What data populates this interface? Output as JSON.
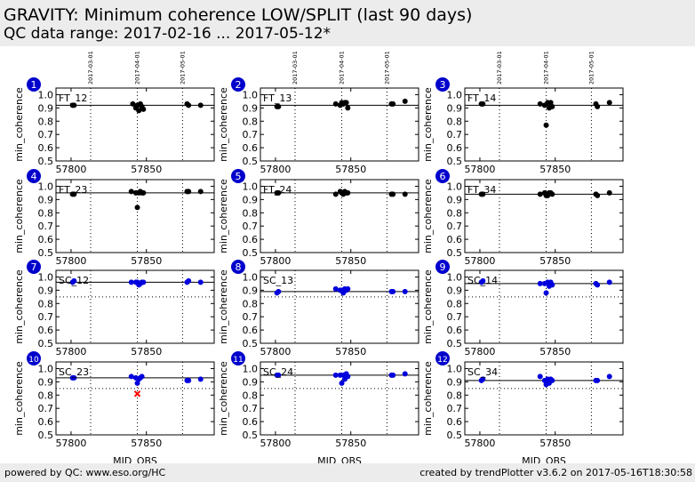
{
  "header": {
    "title": "GRAVITY: Minimum coherence LOW/SPLIT (last 90 days)",
    "subtitle": "QC data range: 2017-02-16 ... 2017-05-12*"
  },
  "footer": {
    "left": "powered by QC: www.eso.org/HC",
    "right": "created by trendPlotter v3.6.2 on 2017-05-16T18:30:58"
  },
  "colors": {
    "ft": "#000000",
    "sc": "#0000dd",
    "outlier": "#ff0000",
    "badge": "#0000cc"
  },
  "chart_data": [
    {
      "type": "scatter",
      "num": "1",
      "label": "FT_12",
      "series_color": "black",
      "xlim": [
        57790,
        57895
      ],
      "ylim": [
        0.5,
        1.05
      ],
      "xlabel": "",
      "ylabel": "min_coherence",
      "xticks": [
        57800,
        57850
      ],
      "yticks": [
        0.5,
        0.6,
        0.7,
        0.8,
        0.9,
        1.0
      ],
      "date_markers": [
        {
          "mjd": 57813,
          "label": "2017-03-01"
        },
        {
          "mjd": 57844,
          "label": "2017-04-01"
        },
        {
          "mjd": 57874,
          "label": "2017-05-01"
        }
      ],
      "ref_line": 0.92,
      "threshold": null,
      "points": [
        [
          57801,
          0.92
        ],
        [
          57802,
          0.92
        ],
        [
          57841,
          0.93
        ],
        [
          57843,
          0.9
        ],
        [
          57844,
          0.92
        ],
        [
          57845,
          0.88
        ],
        [
          57846,
          0.93
        ],
        [
          57847,
          0.91
        ],
        [
          57848,
          0.89
        ],
        [
          57877,
          0.93
        ],
        [
          57878,
          0.92
        ],
        [
          57886,
          0.92
        ]
      ],
      "outliers": []
    },
    {
      "type": "scatter",
      "num": "2",
      "label": "FT_13",
      "series_color": "black",
      "xlim": [
        57790,
        57895
      ],
      "ylim": [
        0.5,
        1.05
      ],
      "xlabel": "",
      "ylabel": "min_coherence",
      "xticks": [
        57800,
        57850
      ],
      "yticks": [
        0.5,
        0.6,
        0.7,
        0.8,
        0.9,
        1.0
      ],
      "date_markers": [
        {
          "mjd": 57813,
          "label": "2017-03-01"
        },
        {
          "mjd": 57844,
          "label": "2017-04-01"
        },
        {
          "mjd": 57874,
          "label": "2017-05-01"
        }
      ],
      "ref_line": 0.92,
      "threshold": null,
      "points": [
        [
          57801,
          0.91
        ],
        [
          57802,
          0.91
        ],
        [
          57840,
          0.93
        ],
        [
          57843,
          0.92
        ],
        [
          57844,
          0.94
        ],
        [
          57845,
          0.93
        ],
        [
          57846,
          0.94
        ],
        [
          57847,
          0.94
        ],
        [
          57848,
          0.9
        ],
        [
          57877,
          0.93
        ],
        [
          57878,
          0.93
        ],
        [
          57886,
          0.95
        ]
      ],
      "outliers": []
    },
    {
      "type": "scatter",
      "num": "3",
      "label": "FT_14",
      "series_color": "black",
      "xlim": [
        57790,
        57895
      ],
      "ylim": [
        0.5,
        1.05
      ],
      "xlabel": "",
      "ylabel": "min_coherence",
      "xticks": [
        57800,
        57850
      ],
      "yticks": [
        0.5,
        0.6,
        0.7,
        0.8,
        0.9,
        1.0
      ],
      "date_markers": [
        {
          "mjd": 57813,
          "label": "2017-03-01"
        },
        {
          "mjd": 57844,
          "label": "2017-04-01"
        },
        {
          "mjd": 57874,
          "label": "2017-05-01"
        }
      ],
      "ref_line": 0.92,
      "threshold": null,
      "points": [
        [
          57801,
          0.93
        ],
        [
          57802,
          0.93
        ],
        [
          57840,
          0.93
        ],
        [
          57843,
          0.92
        ],
        [
          57844,
          0.77
        ],
        [
          57845,
          0.94
        ],
        [
          57846,
          0.9
        ],
        [
          57847,
          0.94
        ],
        [
          57848,
          0.91
        ],
        [
          57877,
          0.93
        ],
        [
          57878,
          0.91
        ],
        [
          57886,
          0.94
        ]
      ],
      "outliers": []
    },
    {
      "type": "scatter",
      "num": "4",
      "label": "FT_23",
      "series_color": "black",
      "xlim": [
        57790,
        57895
      ],
      "ylim": [
        0.5,
        1.05
      ],
      "xlabel": "",
      "ylabel": "min_coherence",
      "xticks": [
        57800,
        57850
      ],
      "yticks": [
        0.5,
        0.6,
        0.7,
        0.8,
        0.9,
        1.0
      ],
      "date_markers": [],
      "ref_line": 0.95,
      "threshold": null,
      "points": [
        [
          57801,
          0.94
        ],
        [
          57802,
          0.94
        ],
        [
          57840,
          0.96
        ],
        [
          57843,
          0.95
        ],
        [
          57844,
          0.84
        ],
        [
          57845,
          0.95
        ],
        [
          57846,
          0.96
        ],
        [
          57847,
          0.95
        ],
        [
          57848,
          0.95
        ],
        [
          57877,
          0.96
        ],
        [
          57878,
          0.96
        ],
        [
          57886,
          0.96
        ]
      ],
      "outliers": []
    },
    {
      "type": "scatter",
      "num": "5",
      "label": "FT_24",
      "series_color": "black",
      "xlim": [
        57790,
        57895
      ],
      "ylim": [
        0.5,
        1.05
      ],
      "xlabel": "",
      "ylabel": "min_coherence",
      "xticks": [
        57800,
        57850
      ],
      "yticks": [
        0.5,
        0.6,
        0.7,
        0.8,
        0.9,
        1.0
      ],
      "date_markers": [],
      "ref_line": 0.95,
      "threshold": null,
      "points": [
        [
          57801,
          0.95
        ],
        [
          57802,
          0.95
        ],
        [
          57840,
          0.94
        ],
        [
          57843,
          0.96
        ],
        [
          57844,
          0.95
        ],
        [
          57845,
          0.94
        ],
        [
          57846,
          0.96
        ],
        [
          57847,
          0.95
        ],
        [
          57848,
          0.95
        ],
        [
          57877,
          0.94
        ],
        [
          57878,
          0.94
        ],
        [
          57886,
          0.94
        ]
      ],
      "outliers": []
    },
    {
      "type": "scatter",
      "num": "6",
      "label": "FT_34",
      "series_color": "black",
      "xlim": [
        57790,
        57895
      ],
      "ylim": [
        0.5,
        1.05
      ],
      "xlabel": "",
      "ylabel": "min_coherence",
      "xticks": [
        57800,
        57850
      ],
      "yticks": [
        0.5,
        0.6,
        0.7,
        0.8,
        0.9,
        1.0
      ],
      "date_markers": [],
      "ref_line": 0.94,
      "threshold": null,
      "points": [
        [
          57801,
          0.94
        ],
        [
          57802,
          0.94
        ],
        [
          57840,
          0.94
        ],
        [
          57843,
          0.95
        ],
        [
          57844,
          0.93
        ],
        [
          57845,
          0.93
        ],
        [
          57846,
          0.95
        ],
        [
          57847,
          0.95
        ],
        [
          57848,
          0.94
        ],
        [
          57877,
          0.94
        ],
        [
          57878,
          0.93
        ],
        [
          57886,
          0.95
        ]
      ],
      "outliers": []
    },
    {
      "type": "scatter",
      "num": "7",
      "label": "SC_12",
      "series_color": "blue",
      "xlim": [
        57790,
        57895
      ],
      "ylim": [
        0.5,
        1.05
      ],
      "xlabel": "",
      "ylabel": "min_coherence",
      "xticks": [
        57800,
        57850
      ],
      "yticks": [
        0.5,
        0.6,
        0.7,
        0.8,
        0.9,
        1.0
      ],
      "date_markers": [],
      "ref_line": 0.96,
      "threshold": 0.85,
      "points": [
        [
          57801,
          0.96
        ],
        [
          57802,
          0.97
        ],
        [
          57840,
          0.96
        ],
        [
          57843,
          0.96
        ],
        [
          57844,
          0.96
        ],
        [
          57845,
          0.94
        ],
        [
          57846,
          0.95
        ],
        [
          57847,
          0.96
        ],
        [
          57848,
          0.96
        ],
        [
          57877,
          0.96
        ],
        [
          57878,
          0.97
        ],
        [
          57886,
          0.96
        ]
      ],
      "outliers": []
    },
    {
      "type": "scatter",
      "num": "8",
      "label": "SC_13",
      "series_color": "blue",
      "xlim": [
        57790,
        57895
      ],
      "ylim": [
        0.5,
        1.05
      ],
      "xlabel": "",
      "ylabel": "min_coherence",
      "xticks": [
        57800,
        57850
      ],
      "yticks": [
        0.5,
        0.6,
        0.7,
        0.8,
        0.9,
        1.0
      ],
      "date_markers": [],
      "ref_line": 0.89,
      "threshold": 0.85,
      "points": [
        [
          57801,
          0.88
        ],
        [
          57802,
          0.89
        ],
        [
          57840,
          0.91
        ],
        [
          57843,
          0.9
        ],
        [
          57844,
          0.9
        ],
        [
          57845,
          0.88
        ],
        [
          57846,
          0.91
        ],
        [
          57847,
          0.9
        ],
        [
          57848,
          0.91
        ],
        [
          57877,
          0.89
        ],
        [
          57878,
          0.89
        ],
        [
          57886,
          0.89
        ]
      ],
      "outliers": []
    },
    {
      "type": "scatter",
      "num": "9",
      "label": "SC_14",
      "series_color": "blue",
      "xlim": [
        57790,
        57895
      ],
      "ylim": [
        0.5,
        1.05
      ],
      "xlabel": "",
      "ylabel": "min_coherence",
      "xticks": [
        57800,
        57850
      ],
      "yticks": [
        0.5,
        0.6,
        0.7,
        0.8,
        0.9,
        1.0
      ],
      "date_markers": [],
      "ref_line": 0.95,
      "threshold": 0.85,
      "points": [
        [
          57801,
          0.96
        ],
        [
          57802,
          0.97
        ],
        [
          57840,
          0.95
        ],
        [
          57843,
          0.95
        ],
        [
          57844,
          0.88
        ],
        [
          57845,
          0.96
        ],
        [
          57846,
          0.93
        ],
        [
          57847,
          0.96
        ],
        [
          57848,
          0.94
        ],
        [
          57877,
          0.95
        ],
        [
          57878,
          0.94
        ],
        [
          57886,
          0.96
        ]
      ],
      "outliers": []
    },
    {
      "type": "scatter",
      "num": "10",
      "label": "SC_23",
      "series_color": "blue",
      "xlim": [
        57790,
        57895
      ],
      "ylim": [
        0.5,
        1.05
      ],
      "xlabel": "",
      "ylabel": "min_coherence",
      "xticks": [
        57800,
        57850
      ],
      "yticks": [
        0.5,
        0.6,
        0.7,
        0.8,
        0.9,
        1.0
      ],
      "date_markers": [],
      "ref_line": 0.93,
      "threshold": 0.85,
      "points": [
        [
          57801,
          0.93
        ],
        [
          57802,
          0.93
        ],
        [
          57840,
          0.94
        ],
        [
          57843,
          0.93
        ],
        [
          57844,
          0.89
        ],
        [
          57845,
          0.92
        ],
        [
          57846,
          0.93
        ],
        [
          57847,
          0.94
        ],
        [
          57877,
          0.91
        ],
        [
          57878,
          0.91
        ],
        [
          57886,
          0.92
        ]
      ],
      "outliers": [
        [
          57844,
          0.81
        ]
      ]
    },
    {
      "type": "scatter",
      "num": "11",
      "label": "SC_24",
      "series_color": "blue",
      "xlim": [
        57790,
        57895
      ],
      "ylim": [
        0.5,
        1.05
      ],
      "xlabel": "MJD_OBS",
      "ylabel": "min_coherence",
      "xticks": [
        57800,
        57850
      ],
      "yticks": [
        0.5,
        0.6,
        0.7,
        0.8,
        0.9,
        1.0
      ],
      "date_markers": [],
      "ref_line": 0.95,
      "threshold": 0.85,
      "points": [
        [
          57801,
          0.95
        ],
        [
          57802,
          0.95
        ],
        [
          57840,
          0.95
        ],
        [
          57843,
          0.95
        ],
        [
          57844,
          0.89
        ],
        [
          57845,
          0.95
        ],
        [
          57846,
          0.92
        ],
        [
          57847,
          0.96
        ],
        [
          57848,
          0.94
        ],
        [
          57877,
          0.95
        ],
        [
          57878,
          0.95
        ],
        [
          57886,
          0.96
        ]
      ],
      "outliers": []
    },
    {
      "type": "scatter",
      "num": "12",
      "label": "SC_34",
      "series_color": "blue",
      "xlim": [
        57790,
        57895
      ],
      "ylim": [
        0.5,
        1.05
      ],
      "xlabel": "MJD_OBS",
      "ylabel": "min_coherence",
      "xticks": [
        57800,
        57850
      ],
      "yticks": [
        0.5,
        0.6,
        0.7,
        0.8,
        0.9,
        1.0
      ],
      "date_markers": [],
      "ref_line": 0.91,
      "threshold": 0.85,
      "points": [
        [
          57801,
          0.91
        ],
        [
          57802,
          0.92
        ],
        [
          57840,
          0.94
        ],
        [
          57843,
          0.91
        ],
        [
          57844,
          0.88
        ],
        [
          57845,
          0.92
        ],
        [
          57846,
          0.89
        ],
        [
          57847,
          0.92
        ],
        [
          57848,
          0.91
        ],
        [
          57877,
          0.91
        ],
        [
          57878,
          0.91
        ],
        [
          57886,
          0.94
        ]
      ],
      "outliers": []
    }
  ]
}
